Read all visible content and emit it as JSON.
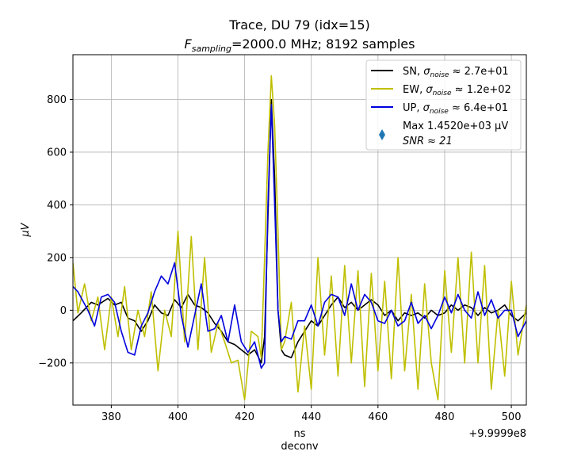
{
  "chart_data": {
    "type": "line",
    "title": "Trace, DU 79 (idx=15)",
    "subtitle_prefix": "F",
    "subtitle_subscript": "sampling",
    "subtitle_rest": "=2000.0 MHz; 8192 samples",
    "xlabel": "ns",
    "xlabel2": "deconv",
    "ylabel": "μV",
    "x_offset_label": "+9.9999e8",
    "xlim": [
      368.5,
      504.5
    ],
    "ylim": [
      -360,
      970
    ],
    "x_ticks": [
      380,
      400,
      420,
      440,
      460,
      480,
      500
    ],
    "y_ticks": [
      -200,
      0,
      200,
      400,
      600,
      800
    ],
    "grid": true,
    "legend_position": "top-right",
    "series": [
      {
        "name": "SN",
        "legend_text": "SN, σnoise ≈ 2.7e+01",
        "color": "#000000",
        "x": [
          368.5,
          371,
          374,
          376,
          379,
          381,
          383,
          385,
          387,
          389,
          391,
          393,
          395,
          397,
          399,
          401,
          403,
          405,
          407,
          409,
          411,
          413,
          415,
          417,
          419,
          421,
          423,
          425,
          426,
          427,
          428,
          429,
          430,
          431,
          432,
          434,
          436,
          438,
          440,
          442,
          444,
          446,
          448,
          450,
          452,
          454,
          456,
          458,
          460,
          462,
          464,
          466,
          468,
          470,
          472,
          474,
          476,
          478,
          480,
          482,
          484,
          486,
          488,
          490,
          492,
          494,
          496,
          498,
          500,
          502,
          504.5
        ],
        "y": [
          -40,
          -10,
          30,
          20,
          45,
          20,
          30,
          -30,
          -40,
          -80,
          -40,
          20,
          -10,
          -20,
          40,
          10,
          60,
          20,
          10,
          -10,
          -50,
          -80,
          -120,
          -130,
          -150,
          -170,
          -150,
          -200,
          -100,
          350,
          800,
          500,
          0,
          -150,
          -170,
          -180,
          -120,
          -80,
          -40,
          -60,
          -20,
          20,
          50,
          10,
          30,
          0,
          20,
          40,
          20,
          -20,
          0,
          -40,
          -10,
          -20,
          -10,
          -30,
          0,
          -20,
          -10,
          20,
          0,
          20,
          10,
          -20,
          10,
          -10,
          0,
          20,
          -20,
          -40,
          -10
        ]
      },
      {
        "name": "EW",
        "legend_text": "EW, σnoise ≈ 1.2e+02",
        "color": "#bfbf00",
        "x": [
          368.5,
          370,
          372,
          374,
          376,
          378,
          380,
          382,
          384,
          386,
          388,
          390,
          392,
          394,
          396,
          398,
          400,
          402,
          404,
          406,
          408,
          410,
          412,
          414,
          416,
          418,
          420,
          422,
          424,
          425,
          426,
          427,
          428,
          429,
          430,
          431,
          432,
          434,
          436,
          438,
          440,
          442,
          444,
          446,
          448,
          450,
          452,
          454,
          456,
          458,
          460,
          462,
          464,
          466,
          468,
          470,
          472,
          474,
          476,
          478,
          480,
          482,
          484,
          486,
          488,
          490,
          492,
          494,
          496,
          498,
          500,
          502,
          504.5
        ],
        "y": [
          180,
          -10,
          100,
          -40,
          50,
          -150,
          50,
          -100,
          90,
          -150,
          0,
          -100,
          70,
          -230,
          0,
          -100,
          300,
          -120,
          280,
          -150,
          200,
          -160,
          -50,
          -120,
          -200,
          -190,
          -340,
          -80,
          -100,
          -180,
          200,
          600,
          890,
          700,
          300,
          -150,
          -120,
          30,
          -310,
          -60,
          -300,
          200,
          -170,
          130,
          -250,
          170,
          -200,
          150,
          -290,
          140,
          -230,
          110,
          -260,
          200,
          -230,
          60,
          -300,
          100,
          -200,
          -340,
          150,
          -160,
          200,
          -200,
          220,
          -200,
          170,
          -300,
          0,
          -250,
          110,
          -170,
          20
        ]
      },
      {
        "name": "UP",
        "legend_text": "UP, σnoise ≈ 6.4e+01",
        "color": "#0000dd",
        "x": [
          368.5,
          370,
          373,
          375,
          377,
          379,
          381,
          383,
          385,
          387,
          389,
          391,
          393,
          395,
          397,
          399,
          401,
          403,
          405,
          407,
          409,
          411,
          413,
          415,
          417,
          419,
          421,
          423,
          425,
          426,
          427,
          428,
          429,
          430,
          431,
          432,
          434,
          436,
          438,
          440,
          442,
          444,
          446,
          448,
          450,
          452,
          454,
          456,
          458,
          460,
          462,
          464,
          466,
          468,
          470,
          472,
          474,
          476,
          478,
          480,
          482,
          484,
          486,
          488,
          490,
          492,
          494,
          496,
          498,
          500,
          502,
          504.5
        ],
        "y": [
          90,
          70,
          0,
          -60,
          50,
          60,
          30,
          -80,
          -160,
          -170,
          -60,
          -10,
          70,
          130,
          100,
          180,
          -20,
          -140,
          -20,
          100,
          -80,
          -70,
          -20,
          -120,
          20,
          -120,
          -160,
          -120,
          -220,
          -200,
          400,
          780,
          400,
          0,
          -120,
          -100,
          -110,
          -40,
          -40,
          20,
          -60,
          30,
          60,
          50,
          -20,
          100,
          0,
          60,
          30,
          -40,
          -50,
          0,
          -60,
          -40,
          30,
          -50,
          -20,
          -70,
          -20,
          50,
          -10,
          60,
          0,
          -30,
          70,
          -20,
          40,
          -30,
          0,
          0,
          -100,
          -40
        ]
      }
    ],
    "marker": {
      "legend_line1": "Max 1.4520e+03 μV",
      "legend_line2": "SNR ≈ 21",
      "color": "#1f77b4",
      "shape": "thin-diamond"
    }
  }
}
